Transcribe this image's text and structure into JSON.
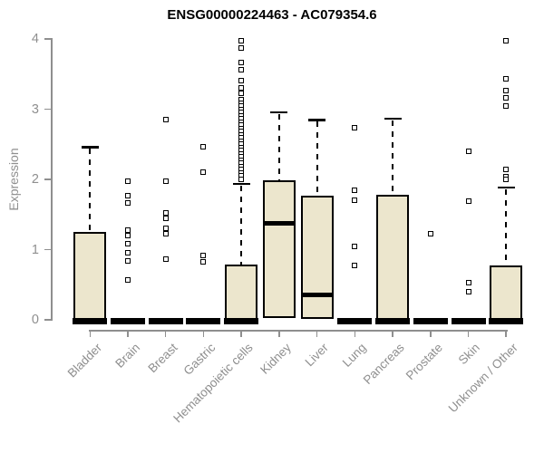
{
  "chart_data": {
    "type": "boxplot",
    "title": "ENSG00000224463 - AC079354.6",
    "xlabel": "",
    "ylabel": "Expression",
    "ylim": [
      0,
      4
    ],
    "yticks": [
      0,
      1,
      2,
      3,
      4
    ],
    "grid": false,
    "legend": "none",
    "categories": [
      "Bladder",
      "Brain",
      "Breast",
      "Gastric",
      "Hematopoietic cells",
      "Kidney",
      "Liver",
      "Lung",
      "Pancreas",
      "Prostate",
      "Skin",
      "Unknown / Other"
    ],
    "series": [
      {
        "category": "Bladder",
        "q1": 0,
        "median": 0.02,
        "q3": 1.25,
        "whisker_low": 0,
        "whisker_high": 2.46,
        "outliers": []
      },
      {
        "category": "Brain",
        "q1": 0,
        "median": 0,
        "q3": 0,
        "whisker_low": 0,
        "whisker_high": 0,
        "outliers": [
          1.97,
          1.77,
          1.67,
          1.28,
          1.2,
          1.09,
          0.96,
          0.84,
          0.57
        ]
      },
      {
        "category": "Breast",
        "q1": 0,
        "median": 0,
        "q3": 0,
        "whisker_low": 0,
        "whisker_high": 0,
        "outliers": [
          2.85,
          1.97,
          1.52,
          1.45,
          1.3,
          1.22,
          0.87
        ]
      },
      {
        "category": "Gastric",
        "q1": 0,
        "median": 0,
        "q3": 0,
        "whisker_low": 0,
        "whisker_high": 0,
        "outliers": [
          2.46,
          2.1,
          0.92,
          0.83
        ]
      },
      {
        "category": "Hematopoietic cells",
        "q1": 0,
        "median": 0.02,
        "q3": 0.79,
        "whisker_low": 0,
        "whisker_high": 1.94,
        "outliers": [
          3.97,
          3.87,
          3.67,
          3.56,
          3.41,
          3.3,
          3.22,
          3.13,
          3.08,
          3.04,
          2.99,
          2.95,
          2.9,
          2.86,
          2.81,
          2.77,
          2.72,
          2.68,
          2.63,
          2.59,
          2.54,
          2.5,
          2.45,
          2.41,
          2.36,
          2.32,
          2.27,
          2.23,
          2.18,
          2.14,
          2.09,
          2.05,
          2.0
        ]
      },
      {
        "category": "Kidney",
        "q1": 0.03,
        "median": 1.37,
        "q3": 1.99,
        "whisker_low": 0.03,
        "whisker_high": 2.96,
        "outliers": []
      },
      {
        "category": "Liver",
        "q1": 0.01,
        "median": 0.36,
        "q3": 1.77,
        "whisker_low": 0.01,
        "whisker_high": 2.85,
        "outliers": []
      },
      {
        "category": "Lung",
        "q1": 0,
        "median": 0,
        "q3": 0,
        "whisker_low": 0,
        "whisker_high": 0,
        "outliers": [
          2.73,
          1.84,
          1.7,
          1.05,
          0.77
        ]
      },
      {
        "category": "Pancreas",
        "q1": 0,
        "median": 0.02,
        "q3": 1.78,
        "whisker_low": 0,
        "whisker_high": 2.87,
        "outliers": []
      },
      {
        "category": "Prostate",
        "q1": 0,
        "median": 0,
        "q3": 0,
        "whisker_low": 0,
        "whisker_high": 0,
        "outliers": [
          1.22
        ]
      },
      {
        "category": "Skin",
        "q1": 0,
        "median": 0,
        "q3": 0,
        "whisker_low": 0,
        "whisker_high": 0,
        "outliers": [
          2.4,
          1.69,
          0.53,
          0.4
        ]
      },
      {
        "category": "Unknown / Other",
        "q1": 0,
        "median": 0.02,
        "q3": 0.77,
        "whisker_low": 0,
        "whisker_high": 1.89,
        "outliers": [
          3.97,
          3.43,
          3.26,
          3.16,
          3.04,
          2.14,
          2.04,
          2.0
        ]
      }
    ],
    "colors": {
      "box_fill": "#ece6cd",
      "box_border": "#000000",
      "median": "#000000",
      "whisker": "#000000",
      "outlier_border": "#000000",
      "outlier_fill": "#ffffff",
      "axis": "#8f8f8f",
      "tick_label": "#8f8f8f",
      "title": "#000000",
      "background": "#ffffff"
    }
  }
}
